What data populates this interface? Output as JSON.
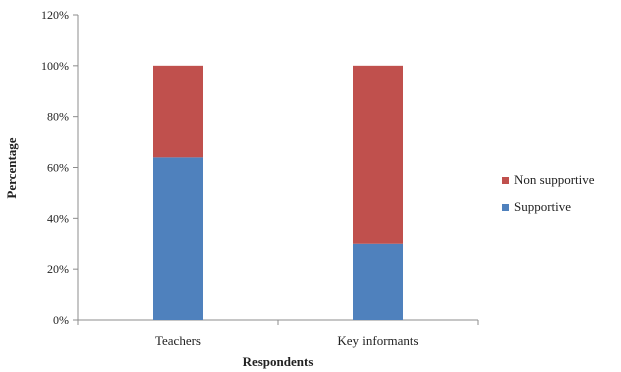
{
  "chart_data": {
    "type": "bar",
    "stacked": true,
    "categories": [
      "Teachers",
      "Key informants"
    ],
    "series": [
      {
        "name": "Supportive",
        "values": [
          64,
          30
        ],
        "color": "#4f81bd"
      },
      {
        "name": "Non supportive",
        "values": [
          36,
          70
        ],
        "color": "#c0504d"
      }
    ],
    "xlabel": "Respondents",
    "ylabel": "Percentage",
    "ylim": [
      0,
      120
    ],
    "yticks": [
      0,
      20,
      40,
      60,
      80,
      100,
      120
    ],
    "ytick_labels": [
      "0%",
      "20%",
      "40%",
      "60%",
      "80%",
      "100%",
      "120%"
    ],
    "grid": false,
    "legend": {
      "position": "right",
      "entries": [
        "Non supportive",
        "Supportive"
      ]
    }
  }
}
